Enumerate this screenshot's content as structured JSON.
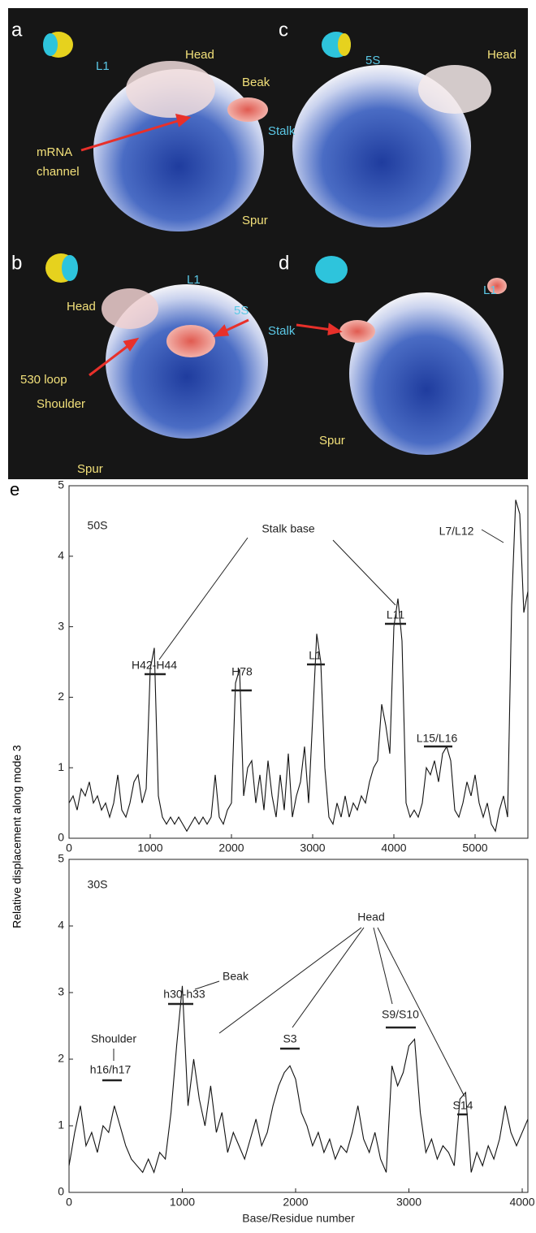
{
  "figure_letter": "e",
  "ylabel": "Relative displacement along mode 3",
  "panels": [
    {
      "letter": "a",
      "labels": [
        {
          "text": "L1",
          "color": "#5bc8e6"
        },
        {
          "text": "Head",
          "color": "#f2e07a"
        },
        {
          "text": "Beak",
          "color": "#f2e07a"
        },
        {
          "text": "Stalk",
          "color": "#5bc8e6"
        },
        {
          "text": "mRNA",
          "color": "#f2e07a"
        },
        {
          "text": "channel",
          "color": "#f2e07a"
        },
        {
          "text": "Spur",
          "color": "#f2e07a"
        }
      ]
    },
    {
      "letter": "c",
      "labels": [
        {
          "text": "5S",
          "color": "#5bc8e6"
        },
        {
          "text": "Head",
          "color": "#f2e07a"
        }
      ]
    },
    {
      "letter": "b",
      "labels": [
        {
          "text": "L1",
          "color": "#5bc8e6"
        },
        {
          "text": "5S",
          "color": "#5bc8e6"
        },
        {
          "text": "Head",
          "color": "#f2e07a"
        },
        {
          "text": "530 loop",
          "color": "#f2e07a"
        },
        {
          "text": "Shoulder",
          "color": "#f2e07a"
        },
        {
          "text": "Spur",
          "color": "#f2e07a"
        }
      ]
    },
    {
      "letter": "d",
      "labels": [
        {
          "text": "Stalk",
          "color": "#5bc8e6"
        },
        {
          "text": "L1",
          "color": "#5bc8e6"
        },
        {
          "text": "Spur",
          "color": "#f2e07a"
        }
      ]
    }
  ],
  "chart_data": [
    {
      "type": "line",
      "color": "#111111",
      "annotations": [
        "50S",
        "Stalk base",
        "H42-H44",
        "H78",
        "L1",
        "L11",
        "L15/L16",
        "L7/L12"
      ],
      "xlim": [
        0,
        5650
      ],
      "xticks": [
        0,
        1000,
        2000,
        3000,
        4000,
        5000
      ],
      "ylim": [
        0,
        5
      ],
      "yticks": [
        0,
        1,
        2,
        3,
        4,
        5
      ],
      "x": [
        0,
        50,
        100,
        150,
        200,
        250,
        300,
        350,
        400,
        450,
        500,
        550,
        600,
        650,
        700,
        750,
        800,
        850,
        900,
        950,
        1000,
        1050,
        1100,
        1150,
        1200,
        1250,
        1300,
        1350,
        1400,
        1450,
        1500,
        1550,
        1600,
        1650,
        1700,
        1750,
        1800,
        1850,
        1900,
        1950,
        2000,
        2050,
        2100,
        2150,
        2200,
        2250,
        2300,
        2350,
        2400,
        2450,
        2500,
        2550,
        2600,
        2650,
        2700,
        2750,
        2800,
        2850,
        2900,
        2950,
        3000,
        3050,
        3100,
        3150,
        3200,
        3250,
        3300,
        3350,
        3400,
        3450,
        3500,
        3550,
        3600,
        3650,
        3700,
        3750,
        3800,
        3850,
        3900,
        3950,
        4000,
        4050,
        4100,
        4150,
        4200,
        4250,
        4300,
        4350,
        4400,
        4450,
        4500,
        4550,
        4600,
        4650,
        4700,
        4750,
        4800,
        4850,
        4900,
        4950,
        5000,
        5050,
        5100,
        5150,
        5200,
        5250,
        5300,
        5350,
        5400,
        5450,
        5500,
        5550,
        5600,
        5650
      ],
      "values": [
        0.5,
        0.6,
        0.4,
        0.7,
        0.6,
        0.8,
        0.5,
        0.6,
        0.4,
        0.5,
        0.3,
        0.5,
        0.9,
        0.4,
        0.3,
        0.5,
        0.8,
        0.9,
        0.5,
        0.7,
        2.4,
        2.7,
        0.6,
        0.3,
        0.2,
        0.3,
        0.2,
        0.3,
        0.2,
        0.1,
        0.2,
        0.3,
        0.2,
        0.3,
        0.2,
        0.3,
        0.9,
        0.3,
        0.2,
        0.4,
        0.5,
        2.2,
        2.4,
        0.6,
        1.0,
        1.1,
        0.5,
        0.9,
        0.4,
        1.1,
        0.6,
        0.3,
        0.9,
        0.4,
        1.2,
        0.3,
        0.6,
        0.8,
        1.3,
        0.5,
        1.7,
        2.9,
        2.5,
        1.0,
        0.3,
        0.2,
        0.5,
        0.3,
        0.6,
        0.3,
        0.5,
        0.4,
        0.6,
        0.5,
        0.8,
        1.0,
        1.1,
        1.9,
        1.6,
        1.2,
        3.0,
        3.4,
        2.8,
        0.5,
        0.3,
        0.4,
        0.3,
        0.5,
        1.0,
        0.9,
        1.1,
        0.8,
        1.2,
        1.3,
        1.1,
        0.4,
        0.3,
        0.5,
        0.8,
        0.6,
        0.9,
        0.5,
        0.3,
        0.5,
        0.2,
        0.1,
        0.4,
        0.6,
        0.3,
        3.3,
        4.8,
        4.6,
        3.2,
        3.5
      ]
    },
    {
      "type": "line",
      "color": "#111111",
      "xlabel": "Base/Residue number",
      "annotations": [
        "30S",
        "Shoulder",
        "h16/h17",
        "Beak",
        "h30-h33",
        "Head",
        "S3",
        "S9/S10",
        "S14"
      ],
      "xlim": [
        0,
        4050
      ],
      "xticks": [
        0,
        1000,
        2000,
        3000,
        4000
      ],
      "ylim": [
        0,
        5
      ],
      "yticks": [
        0,
        1,
        2,
        3,
        4,
        5
      ],
      "x": [
        0,
        50,
        100,
        150,
        200,
        250,
        300,
        350,
        400,
        450,
        500,
        550,
        600,
        650,
        700,
        750,
        800,
        850,
        900,
        950,
        1000,
        1050,
        1100,
        1150,
        1200,
        1250,
        1300,
        1350,
        1400,
        1450,
        1500,
        1550,
        1600,
        1650,
        1700,
        1750,
        1800,
        1850,
        1900,
        1950,
        2000,
        2050,
        2100,
        2150,
        2200,
        2250,
        2300,
        2350,
        2400,
        2450,
        2500,
        2550,
        2600,
        2650,
        2700,
        2750,
        2800,
        2850,
        2900,
        2950,
        3000,
        3050,
        3100,
        3150,
        3200,
        3250,
        3300,
        3350,
        3400,
        3450,
        3500,
        3550,
        3600,
        3650,
        3700,
        3750,
        3800,
        3850,
        3900,
        3950,
        4000,
        4050
      ],
      "values": [
        0.4,
        0.9,
        1.3,
        0.7,
        0.9,
        0.6,
        1.0,
        0.9,
        1.3,
        1.0,
        0.7,
        0.5,
        0.4,
        0.3,
        0.5,
        0.3,
        0.6,
        0.5,
        1.2,
        2.2,
        3.1,
        1.3,
        2.0,
        1.4,
        1.0,
        1.6,
        0.9,
        1.2,
        0.6,
        0.9,
        0.7,
        0.5,
        0.8,
        1.1,
        0.7,
        0.9,
        1.3,
        1.6,
        1.8,
        1.9,
        1.7,
        1.2,
        1.0,
        0.7,
        0.9,
        0.6,
        0.8,
        0.5,
        0.7,
        0.6,
        0.9,
        1.3,
        0.8,
        0.6,
        0.9,
        0.5,
        0.3,
        1.9,
        1.6,
        1.8,
        2.2,
        2.3,
        1.2,
        0.6,
        0.8,
        0.5,
        0.7,
        0.6,
        0.4,
        1.4,
        1.5,
        0.3,
        0.6,
        0.4,
        0.7,
        0.5,
        0.8,
        1.3,
        0.9,
        0.7,
        0.9,
        1.1
      ]
    }
  ]
}
